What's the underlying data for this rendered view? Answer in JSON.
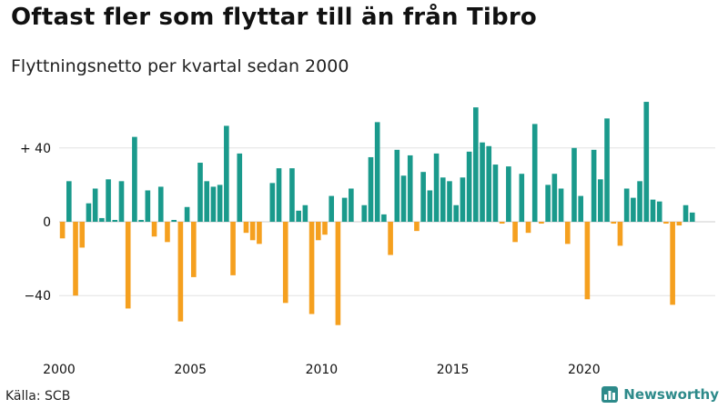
{
  "header": {
    "title": "Oftast fler som flyttar till än från Tibro",
    "subtitle": "Flyttningsnetto per kvartal sedan 2000"
  },
  "footer": {
    "source": "Källa: SCB",
    "brand": "Newsworthy"
  },
  "chart_data": {
    "type": "bar",
    "title": "Oftast fler som flyttar till än från Tibro",
    "subtitle": "Flyttningsnetto per kvartal sedan 2000",
    "xlabel": "",
    "ylabel": "",
    "ylim": [
      -60,
      66
    ],
    "y_ticks": [
      -40,
      0,
      40
    ],
    "y_tick_labels": [
      "−40",
      "0",
      "+ 40"
    ],
    "x_ticks": [
      2000,
      2005,
      2010,
      2015,
      2020
    ],
    "start_year": 2000,
    "quarters_per_year": 4,
    "colors": {
      "positive": "#1a9a8c",
      "negative": "#f5a01f",
      "grid": "#e2e2e2"
    },
    "values": [
      -9,
      22,
      -40,
      -14,
      10,
      18,
      2,
      23,
      1,
      22,
      -47,
      46,
      1,
      17,
      -8,
      19,
      -11,
      1,
      -54,
      8,
      -30,
      32,
      22,
      19,
      20,
      52,
      -29,
      37,
      -6,
      -10,
      -12,
      0,
      21,
      29,
      -44,
      29,
      6,
      9,
      -50,
      -10,
      -7,
      14,
      -56,
      13,
      18,
      0,
      9,
      35,
      54,
      4,
      -18,
      39,
      25,
      36,
      -5,
      27,
      17,
      37,
      24,
      22,
      9,
      24,
      38,
      62,
      43,
      41,
      31,
      -1,
      30,
      -11,
      26,
      -6,
      53,
      -1,
      20,
      26,
      18,
      -12,
      40,
      14,
      -42,
      39,
      23,
      56,
      -1,
      -13,
      18,
      13,
      22,
      65,
      12,
      11,
      -1,
      -45,
      -2,
      9,
      5
    ]
  }
}
